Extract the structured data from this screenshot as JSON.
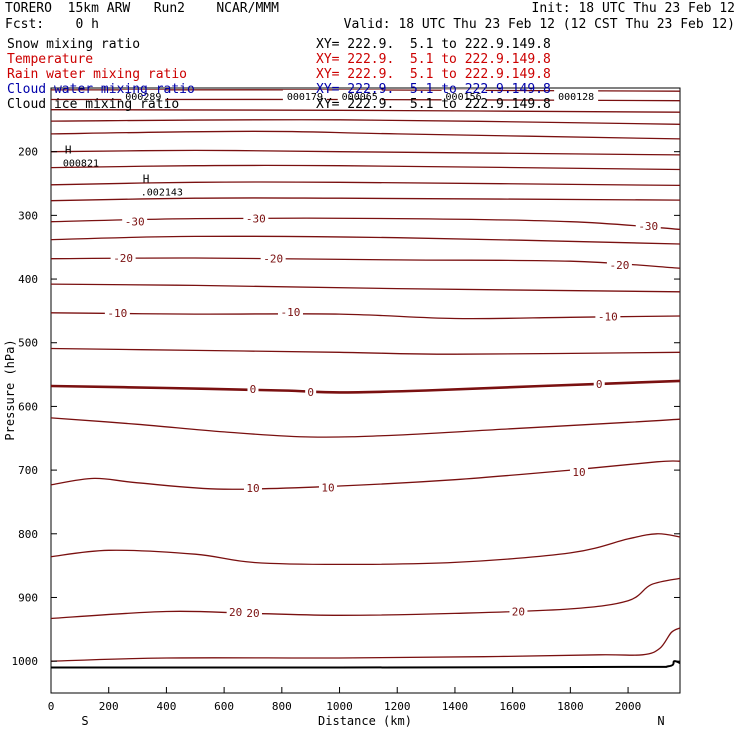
{
  "header": {
    "title": "TORERO  15km ARW   Run2    NCAR/MMM",
    "init": "Init: 18 UTC Thu 23 Feb 12",
    "fcst": "Fcst:    0 h",
    "valid": "Valid: 18 UTC Thu 23 Feb 12 (12 CST Thu 23 Feb 12)"
  },
  "fields": [
    {
      "name": "Snow mixing ratio",
      "xy": "XY= 222.9.  5.1 to 222.9.149.8",
      "color": "#000000"
    },
    {
      "name": "Temperature",
      "xy": "XY= 222.9.  5.1 to 222.9.149.8",
      "color": "#cc0000"
    },
    {
      "name": "Rain water mixing ratio",
      "xy": "XY= 222.9.  5.1 to 222.9.149.8",
      "color": "#cc0000"
    },
    {
      "name": "Cloud water mixing ratio",
      "xy": "XY= 222.9.  5.1 to 222.9.149.8",
      "color": "#0000aa"
    },
    {
      "name": "Cloud ice mixing ratio",
      "xy": "XY= 222.9.  5.1 to 222.9.149.8",
      "color": "#000000"
    }
  ],
  "colors": {
    "isotherm": "#7a1010",
    "terrain": "#000000",
    "axis": "#000000"
  },
  "chart_data": {
    "type": "contour",
    "xlabel": "Distance (km)",
    "ylabel": "Pressure (hPa)",
    "xlim": [
      0,
      2180
    ],
    "ylim": [
      1050,
      100
    ],
    "xticks": [
      0,
      200,
      400,
      600,
      800,
      1000,
      1200,
      1400,
      1600,
      1800,
      2000
    ],
    "yticks": [
      200,
      300,
      400,
      500,
      600,
      700,
      800,
      900,
      1000
    ],
    "endpoints": {
      "left": "S",
      "right": "N"
    },
    "isotherms": [
      {
        "level": null,
        "points": [
          [
            0,
            103
          ],
          [
            1000,
            103
          ],
          [
            2180,
            105
          ]
        ]
      },
      {
        "level": null,
        "points": [
          [
            0,
            118
          ],
          [
            1000,
            118
          ],
          [
            2180,
            120
          ]
        ]
      },
      {
        "level": null,
        "points": [
          [
            0,
            134
          ],
          [
            1000,
            135
          ],
          [
            2180,
            138
          ]
        ]
      },
      {
        "level": null,
        "points": [
          [
            0,
            152
          ],
          [
            1000,
            150
          ],
          [
            2180,
            157
          ]
        ]
      },
      {
        "level": null,
        "points": [
          [
            0,
            172
          ],
          [
            700,
            168
          ],
          [
            1200,
            172
          ],
          [
            2180,
            180
          ]
        ]
      },
      {
        "level": null,
        "points": [
          [
            0,
            200
          ],
          [
            500,
            198
          ],
          [
            1000,
            200
          ],
          [
            2180,
            205
          ]
        ]
      },
      {
        "level": null,
        "points": [
          [
            0,
            225
          ],
          [
            500,
            222
          ],
          [
            1000,
            222
          ],
          [
            2180,
            228
          ]
        ]
      },
      {
        "level": null,
        "points": [
          [
            0,
            252
          ],
          [
            500,
            248
          ],
          [
            1000,
            248
          ],
          [
            2180,
            253
          ]
        ]
      },
      {
        "level": null,
        "points": [
          [
            0,
            277
          ],
          [
            500,
            273
          ],
          [
            1000,
            273
          ],
          [
            2180,
            276
          ]
        ]
      },
      {
        "level": -30,
        "points": [
          [
            0,
            310
          ],
          [
            500,
            305
          ],
          [
            1200,
            305
          ],
          [
            1800,
            310
          ],
          [
            2180,
            322
          ]
        ]
      },
      {
        "level": null,
        "points": [
          [
            0,
            338
          ],
          [
            500,
            333
          ],
          [
            1200,
            335
          ],
          [
            2180,
            345
          ]
        ]
      },
      {
        "level": -20,
        "points": [
          [
            0,
            368
          ],
          [
            500,
            367
          ],
          [
            1200,
            370
          ],
          [
            1800,
            372
          ],
          [
            2180,
            383
          ]
        ]
      },
      {
        "level": null,
        "points": [
          [
            0,
            408
          ],
          [
            500,
            410
          ],
          [
            1200,
            415
          ],
          [
            2180,
            420
          ]
        ]
      },
      {
        "level": -10,
        "points": [
          [
            0,
            453
          ],
          [
            500,
            455
          ],
          [
            1000,
            455
          ],
          [
            1400,
            462
          ],
          [
            1800,
            460
          ],
          [
            2180,
            458
          ]
        ]
      },
      {
        "level": null,
        "points": [
          [
            0,
            509
          ],
          [
            500,
            512
          ],
          [
            1000,
            515
          ],
          [
            1400,
            518
          ],
          [
            2180,
            515
          ]
        ]
      },
      {
        "level": 0,
        "bold": true,
        "points": [
          [
            0,
            568
          ],
          [
            400,
            571
          ],
          [
            800,
            575
          ],
          [
            1000,
            578
          ],
          [
            1300,
            575
          ],
          [
            1700,
            568
          ],
          [
            2180,
            560
          ]
        ]
      },
      {
        "level": null,
        "points": [
          [
            0,
            618
          ],
          [
            300,
            628
          ],
          [
            600,
            640
          ],
          [
            900,
            648
          ],
          [
            1200,
            645
          ],
          [
            1600,
            635
          ],
          [
            2000,
            625
          ],
          [
            2180,
            620
          ]
        ]
      },
      {
        "level": 10,
        "points": [
          [
            0,
            723
          ],
          [
            150,
            713
          ],
          [
            300,
            720
          ],
          [
            600,
            730
          ],
          [
            1000,
            725
          ],
          [
            1400,
            715
          ],
          [
            1800,
            700
          ],
          [
            2100,
            687
          ],
          [
            2180,
            686
          ]
        ]
      },
      {
        "level": null,
        "points": [
          [
            0,
            836
          ],
          [
            200,
            826
          ],
          [
            500,
            832
          ],
          [
            700,
            845
          ],
          [
            1000,
            848
          ],
          [
            1400,
            845
          ],
          [
            1800,
            830
          ],
          [
            2000,
            808
          ],
          [
            2100,
            800
          ],
          [
            2180,
            805
          ]
        ]
      },
      {
        "level": 20,
        "points": [
          [
            0,
            933
          ],
          [
            400,
            922
          ],
          [
            700,
            925
          ],
          [
            1000,
            928
          ],
          [
            1400,
            925
          ],
          [
            1800,
            918
          ],
          [
            2000,
            905
          ],
          [
            2080,
            880
          ],
          [
            2180,
            870
          ]
        ]
      },
      {
        "level": null,
        "points": [
          [
            0,
            1000
          ],
          [
            400,
            995
          ],
          [
            1000,
            995
          ],
          [
            1500,
            993
          ],
          [
            1900,
            990
          ],
          [
            2050,
            990
          ],
          [
            2110,
            980
          ],
          [
            2150,
            955
          ],
          [
            2180,
            948
          ]
        ]
      }
    ],
    "isotherm_labels": [
      {
        "text": "-30",
        "x": 290,
        "p": 310
      },
      {
        "text": "-30",
        "x": 710,
        "p": 305
      },
      {
        "text": "-30",
        "x": 2070,
        "p": 317
      },
      {
        "text": "-20",
        "x": 250,
        "p": 367
      },
      {
        "text": "-20",
        "x": 770,
        "p": 368
      },
      {
        "text": "-20",
        "x": 1970,
        "p": 378
      },
      {
        "text": "-10",
        "x": 230,
        "p": 453
      },
      {
        "text": "-10",
        "x": 830,
        "p": 452
      },
      {
        "text": "-10",
        "x": 1930,
        "p": 459
      },
      {
        "text": "0",
        "x": 700,
        "p": 573
      },
      {
        "text": "0",
        "x": 900,
        "p": 577
      },
      {
        "text": "0",
        "x": 1900,
        "p": 565
      },
      {
        "text": "10",
        "x": 700,
        "p": 728
      },
      {
        "text": "10",
        "x": 960,
        "p": 727
      },
      {
        "text": "10",
        "x": 1830,
        "p": 703
      },
      {
        "text": "20",
        "x": 640,
        "p": 923
      },
      {
        "text": "20",
        "x": 700,
        "p": 924
      },
      {
        "text": "20",
        "x": 1620,
        "p": 922
      }
    ],
    "terrain": {
      "points": [
        [
          0,
          1010
        ],
        [
          1000,
          1010
        ],
        [
          2000,
          1009
        ],
        [
          2140,
          1008
        ],
        [
          2160,
          1000
        ],
        [
          2180,
          1003
        ]
      ]
    },
    "snow_labels": [
      {
        "text": "000821",
        "x": 55,
        "p": 209,
        "marker": "H"
      },
      {
        "text": ".002143",
        "x": 325,
        "p": 255,
        "marker": "H"
      }
    ],
    "cloud_labels": [
      {
        "text": "000289",
        "x": 320,
        "p": 114
      },
      {
        "text": "000179",
        "x": 880,
        "p": 114
      },
      {
        "text": "000065",
        "x": 1070,
        "p": 114
      },
      {
        "text": "000156",
        "x": 1430,
        "p": 114
      },
      {
        "text": "000128",
        "x": 1820,
        "p": 114
      }
    ]
  }
}
